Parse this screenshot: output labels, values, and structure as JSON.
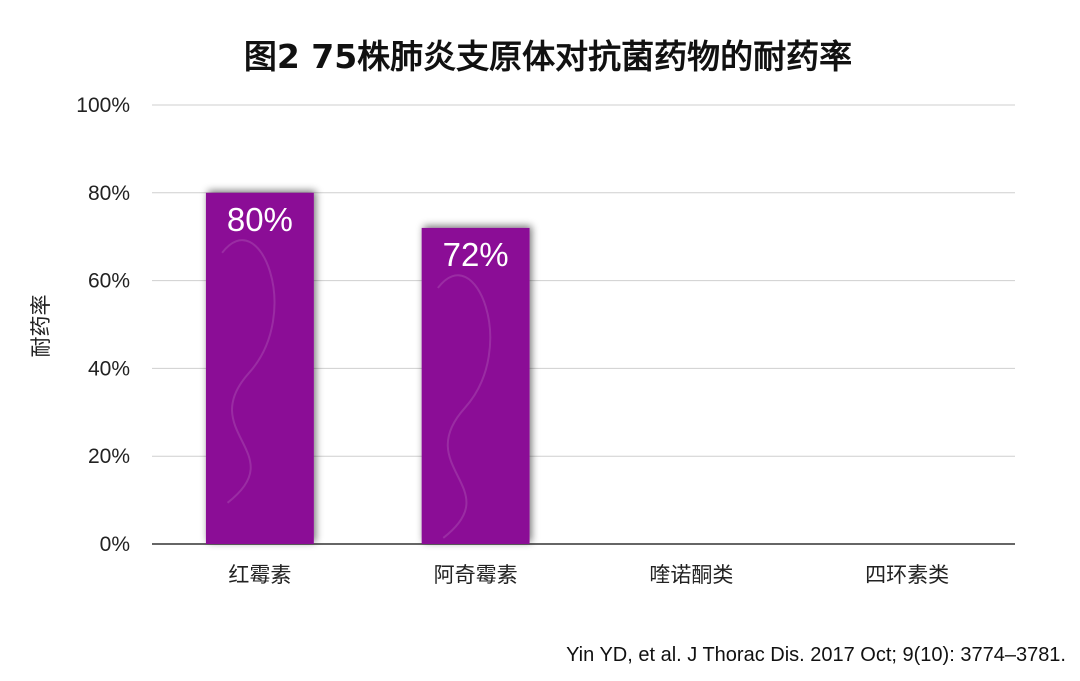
{
  "chart_data": {
    "type": "bar",
    "title": "图2  75株肺炎支原体对抗菌药物的耐药率",
    "ylabel": "耐药率",
    "xlabel": "",
    "categories": [
      "红霉素",
      "阿奇霉素",
      "喹诺酮类",
      "四环素类"
    ],
    "values": [
      80,
      72,
      0,
      0
    ],
    "data_labels": [
      "80%",
      "72%",
      "",
      ""
    ],
    "ylim": [
      0,
      100
    ],
    "yticks": [
      0,
      20,
      40,
      60,
      80,
      100
    ],
    "ytick_labels": [
      "0%",
      "20%",
      "40%",
      "60%",
      "80%",
      "100%"
    ],
    "grid": true,
    "legend": "none",
    "bar_color": "#8B0A96"
  },
  "source": "Yin YD, et al. J Thorac Dis. 2017 Oct; 9(10): 3774–3781."
}
